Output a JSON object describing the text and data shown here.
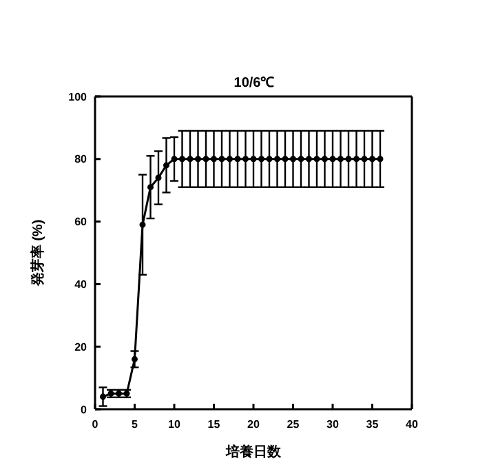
{
  "chart_data": {
    "type": "line",
    "title": "10/6℃",
    "xlabel": "培養日数",
    "ylabel": "発芽率 (%)",
    "x": [
      1,
      2,
      3,
      4,
      5,
      6,
      7,
      8,
      9,
      10,
      11,
      12,
      13,
      14,
      15,
      16,
      17,
      18,
      19,
      20,
      21,
      22,
      23,
      24,
      25,
      26,
      27,
      28,
      29,
      30,
      31,
      32,
      33,
      34,
      35,
      36
    ],
    "series": [
      {
        "color": "#000000",
        "values": [
          4,
          5,
          5,
          5,
          16,
          59,
          71,
          74,
          78,
          80,
          80,
          80,
          80,
          80,
          80,
          80,
          80,
          80,
          80,
          80,
          80,
          80,
          80,
          80,
          80,
          80,
          80,
          80,
          80,
          80,
          80,
          80,
          80,
          80,
          80,
          80
        ],
        "errors": [
          3,
          1.2,
          1.2,
          1.2,
          2.6,
          16,
          10,
          8.5,
          8.7,
          7,
          9,
          9,
          9,
          9,
          9,
          9,
          9,
          9,
          9,
          9,
          9,
          9,
          9,
          9,
          9,
          9,
          9,
          9,
          9,
          9,
          9,
          9,
          9,
          9,
          9,
          9
        ]
      }
    ],
    "xlim": [
      0,
      40
    ],
    "xticks": [
      0,
      5,
      10,
      15,
      20,
      25,
      30,
      35,
      40
    ],
    "ylim": [
      0,
      100
    ],
    "yticks": [
      0,
      20,
      40,
      60,
      80,
      100
    ],
    "marker": "circle",
    "line_style": "solid"
  }
}
